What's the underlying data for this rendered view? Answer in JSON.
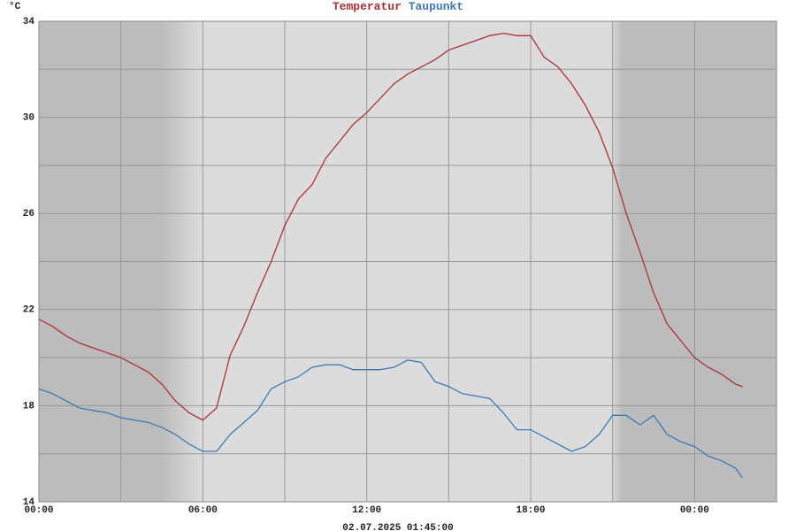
{
  "chart_data": {
    "type": "line",
    "y_unit": "°C",
    "subtitle": "02.07.2025 01:45:00",
    "x": [
      0,
      0.5,
      1,
      1.5,
      2,
      2.5,
      3,
      3.5,
      4,
      4.5,
      5,
      5.5,
      6,
      6.5,
      7,
      7.5,
      8,
      8.5,
      9,
      9.5,
      10,
      10.5,
      11,
      11.5,
      12,
      12.5,
      13,
      13.5,
      14,
      14.5,
      15,
      15.5,
      16,
      16.5,
      17,
      17.5,
      18,
      18.5,
      19,
      19.5,
      20,
      20.5,
      21,
      21.5,
      22,
      22.5,
      23,
      23.5,
      24,
      24.5,
      25,
      25.5,
      25.75
    ],
    "series": [
      {
        "name": "Temperatur",
        "color": "#b03030",
        "values": [
          21.6,
          21.3,
          20.9,
          20.6,
          20.4,
          20.2,
          20.0,
          19.7,
          19.4,
          18.9,
          18.2,
          17.7,
          17.4,
          17.9,
          20.1,
          21.3,
          22.7,
          24.0,
          25.5,
          26.6,
          27.2,
          28.3,
          29.0,
          29.7,
          30.2,
          30.8,
          31.4,
          31.8,
          32.1,
          32.4,
          32.8,
          33.0,
          33.2,
          33.4,
          33.5,
          33.4,
          33.4,
          32.5,
          32.1,
          31.4,
          30.5,
          29.4,
          27.9,
          26.0,
          24.4,
          22.7,
          21.4,
          20.7,
          20.0,
          19.6,
          19.3,
          18.9,
          18.8
        ]
      },
      {
        "name": "Taupunkt",
        "color": "#3a7ab8",
        "values": [
          18.7,
          18.5,
          18.2,
          17.9,
          17.8,
          17.7,
          17.5,
          17.4,
          17.3,
          17.1,
          16.8,
          16.4,
          16.1,
          16.1,
          16.8,
          17.3,
          17.8,
          18.7,
          19.0,
          19.2,
          19.6,
          19.7,
          19.7,
          19.5,
          19.5,
          19.5,
          19.6,
          19.9,
          19.8,
          19.0,
          18.8,
          18.5,
          18.4,
          18.3,
          17.7,
          17.0,
          17.0,
          16.7,
          16.4,
          16.1,
          16.3,
          16.8,
          17.6,
          17.6,
          17.2,
          17.6,
          16.8,
          16.5,
          16.3,
          15.9,
          15.7,
          15.4,
          15.0
        ]
      }
    ],
    "xlim": [
      0,
      27
    ],
    "xticks": [
      {
        "value": 0,
        "label": "00:00"
      },
      {
        "value": 6,
        "label": "06:00"
      },
      {
        "value": 12,
        "label": "12:00"
      },
      {
        "value": 18,
        "label": "18:00"
      },
      {
        "value": 24,
        "label": "00:00"
      }
    ],
    "xgrid_minor": [
      3,
      9,
      15,
      21
    ],
    "ylim": [
      14,
      34
    ],
    "yticks": [
      14,
      18,
      22,
      26,
      30,
      34
    ],
    "ygrid_minor": [
      16,
      20,
      24,
      28,
      32
    ],
    "grid": true
  }
}
